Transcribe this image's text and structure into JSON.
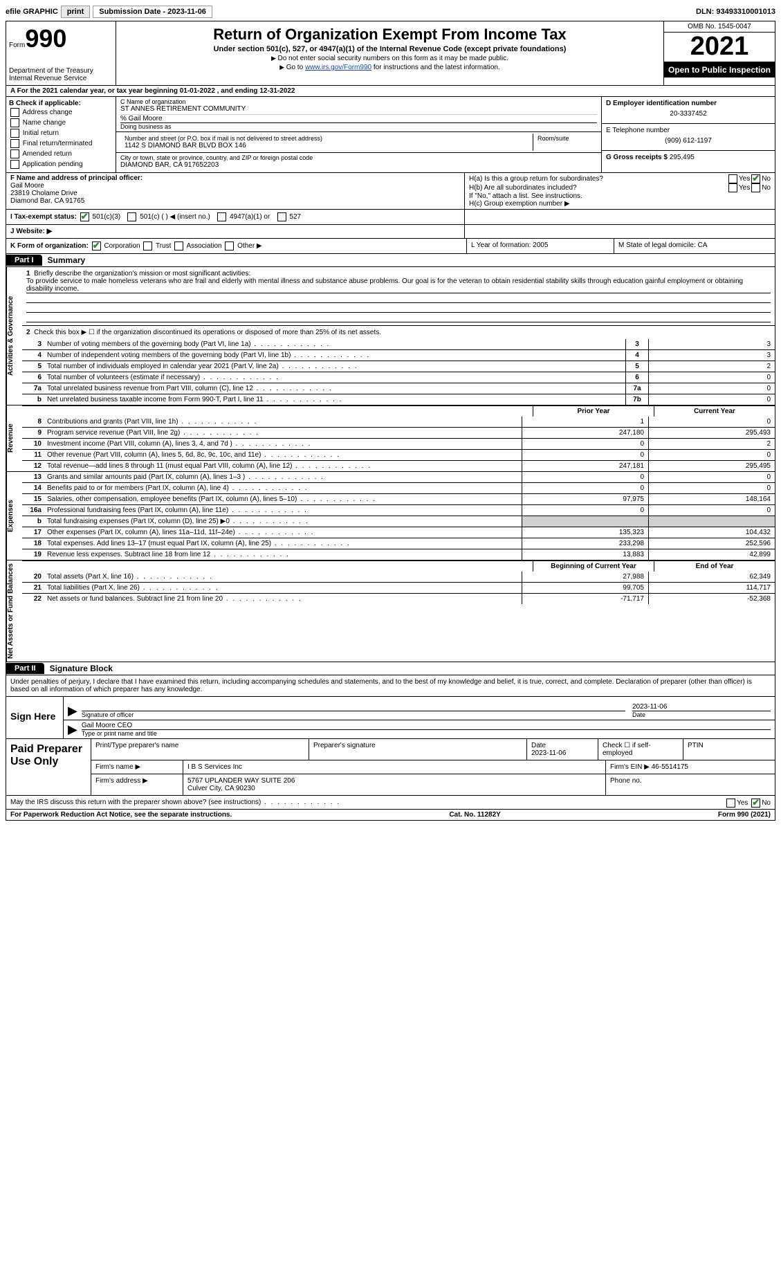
{
  "top": {
    "efile_label": "efile GRAPHIC",
    "print_btn": "print",
    "submission_label": "Submission Date - 2023-11-06",
    "dln_label": "DLN: 93493310001013"
  },
  "header": {
    "form_word": "Form",
    "form_num": "990",
    "dept": "Department of the Treasury Internal Revenue Service",
    "title": "Return of Organization Exempt From Income Tax",
    "sub": "Under section 501(c), 527, or 4947(a)(1) of the Internal Revenue Code (except private foundations)",
    "note1": "Do not enter social security numbers on this form as it may be made public.",
    "note2_pre": "Go to ",
    "note2_link": "www.irs.gov/Form990",
    "note2_post": " for instructions and the latest information.",
    "omb": "OMB No. 1545-0047",
    "year": "2021",
    "inspection": "Open to Public Inspection"
  },
  "row_a": "A For the 2021 calendar year, or tax year beginning 01-01-2022   , and ending 12-31-2022",
  "col_b": {
    "hdr": "B Check if applicable:",
    "items": [
      "Address change",
      "Name change",
      "Initial return",
      "Final return/terminated",
      "Amended return",
      "Application pending"
    ]
  },
  "col_c": {
    "name_label": "C Name of organization",
    "name": "ST ANNES RETIREMENT COMMUNITY",
    "care_of": "% Gail Moore",
    "dba_label": "Doing business as",
    "street_label": "Number and street (or P.O. box if mail is not delivered to street address)",
    "room_label": "Room/suite",
    "street": "1142 S DIAMOND BAR BLVD BOX 146",
    "city_label": "City or town, state or province, country, and ZIP or foreign postal code",
    "city": "DIAMOND BAR, CA  917652203"
  },
  "col_d": {
    "ein_label": "D Employer identification number",
    "ein": "20-3337452",
    "phone_label": "E Telephone number",
    "phone": "(909) 612-1197",
    "gross_label": "G Gross receipts $",
    "gross": "295,495"
  },
  "section_f": {
    "label": "F Name and address of principal officer:",
    "name": "Gail Moore",
    "addr1": "23819 Cholame Drive",
    "addr2": "Diamond Bar, CA  91765"
  },
  "section_h": {
    "ha": "H(a)  Is this a group return for subordinates?",
    "hb": "H(b)  Are all subordinates included?",
    "hb_note": "If \"No,\" attach a list. See instructions.",
    "hc": "H(c)  Group exemption number ▶",
    "yes": "Yes",
    "no": "No"
  },
  "row_i": {
    "label": "I  Tax-exempt status:",
    "o1": "501(c)(3)",
    "o2": "501(c) (  ) ◀ (insert no.)",
    "o3": "4947(a)(1) or",
    "o4": "527"
  },
  "row_j": {
    "label": "J  Website: ▶"
  },
  "row_k": {
    "label": "K Form of organization:",
    "corp": "Corporation",
    "trust": "Trust",
    "assoc": "Association",
    "other": "Other ▶",
    "l": "L Year of formation: 2005",
    "m": "M State of legal domicile: CA"
  },
  "part1": {
    "tab": "Part I",
    "title": "Summary"
  },
  "mission": {
    "label": "Briefly describe the organization's mission or most significant activities:",
    "text": "To provide service to male homeless veterans who are frail and elderly with mental illness and substance abuse problems. Our goal is for the veteran to obtain residential stability skills through education gainful employment or obtaining disability income."
  },
  "line2": "Check this box ▶ ☐ if the organization discontinued its operations or disposed of more than 25% of its net assets.",
  "vtabs": {
    "gov": "Activities & Governance",
    "rev": "Revenue",
    "exp": "Expenses",
    "net": "Net Assets or Fund Balances"
  },
  "lines_simple": [
    {
      "n": "3",
      "desc": "Number of voting members of the governing body (Part VI, line 1a)",
      "box": "3",
      "val": "3"
    },
    {
      "n": "4",
      "desc": "Number of independent voting members of the governing body (Part VI, line 1b)",
      "box": "4",
      "val": "3"
    },
    {
      "n": "5",
      "desc": "Total number of individuals employed in calendar year 2021 (Part V, line 2a)",
      "box": "5",
      "val": "2"
    },
    {
      "n": "6",
      "desc": "Total number of volunteers (estimate if necessary)",
      "box": "6",
      "val": "0"
    },
    {
      "n": "7a",
      "desc": "Total unrelated business revenue from Part VIII, column (C), line 12",
      "box": "7a",
      "val": "0"
    },
    {
      "n": "b",
      "desc": "Net unrelated business taxable income from Form 990-T, Part I, line 11",
      "box": "7b",
      "val": "0"
    }
  ],
  "col_hdr": {
    "prior": "Prior Year",
    "current": "Current Year",
    "boy": "Beginning of Current Year",
    "eoy": "End of Year"
  },
  "lines_rev": [
    {
      "n": "8",
      "desc": "Contributions and grants (Part VIII, line 1h)",
      "p": "1",
      "c": "0"
    },
    {
      "n": "9",
      "desc": "Program service revenue (Part VIII, line 2g)",
      "p": "247,180",
      "c": "295,493"
    },
    {
      "n": "10",
      "desc": "Investment income (Part VIII, column (A), lines 3, 4, and 7d )",
      "p": "0",
      "c": "2"
    },
    {
      "n": "11",
      "desc": "Other revenue (Part VIII, column (A), lines 5, 6d, 8c, 9c, 10c, and 11e)",
      "p": "0",
      "c": "0"
    },
    {
      "n": "12",
      "desc": "Total revenue—add lines 8 through 11 (must equal Part VIII, column (A), line 12)",
      "p": "247,181",
      "c": "295,495"
    }
  ],
  "lines_exp": [
    {
      "n": "13",
      "desc": "Grants and similar amounts paid (Part IX, column (A), lines 1–3 )",
      "p": "0",
      "c": "0"
    },
    {
      "n": "14",
      "desc": "Benefits paid to or for members (Part IX, column (A), line 4)",
      "p": "0",
      "c": "0"
    },
    {
      "n": "15",
      "desc": "Salaries, other compensation, employee benefits (Part IX, column (A), lines 5–10)",
      "p": "97,975",
      "c": "148,164"
    },
    {
      "n": "16a",
      "desc": "Professional fundraising fees (Part IX, column (A), line 11e)",
      "p": "0",
      "c": "0"
    },
    {
      "n": "b",
      "desc": "Total fundraising expenses (Part IX, column (D), line 25) ▶0",
      "p": "grey",
      "c": "grey"
    },
    {
      "n": "17",
      "desc": "Other expenses (Part IX, column (A), lines 11a–11d, 11f–24e)",
      "p": "135,323",
      "c": "104,432"
    },
    {
      "n": "18",
      "desc": "Total expenses. Add lines 13–17 (must equal Part IX, column (A), line 25)",
      "p": "233,298",
      "c": "252,596"
    },
    {
      "n": "19",
      "desc": "Revenue less expenses. Subtract line 18 from line 12",
      "p": "13,883",
      "c": "42,899"
    }
  ],
  "lines_net": [
    {
      "n": "20",
      "desc": "Total assets (Part X, line 16)",
      "p": "27,988",
      "c": "62,349"
    },
    {
      "n": "21",
      "desc": "Total liabilities (Part X, line 26)",
      "p": "99,705",
      "c": "114,717"
    },
    {
      "n": "22",
      "desc": "Net assets or fund balances. Subtract line 21 from line 20",
      "p": "-71,717",
      "c": "-52,368"
    }
  ],
  "part2": {
    "tab": "Part II",
    "title": "Signature Block"
  },
  "sig": {
    "decl": "Under penalties of perjury, I declare that I have examined this return, including accompanying schedules and statements, and to the best of my knowledge and belief, it is true, correct, and complete. Declaration of preparer (other than officer) is based on all information of which preparer has any knowledge.",
    "sign_here": "Sign Here",
    "sig_officer": "Signature of officer",
    "date": "Date",
    "date_val": "2023-11-06",
    "name_title": "Gail Moore CEO",
    "name_label": "Type or print name and title"
  },
  "preparer": {
    "label": "Paid Preparer Use Only",
    "print_name": "Print/Type preparer's name",
    "prep_sig": "Preparer's signature",
    "date_label": "Date",
    "date": "2023-11-06",
    "check_self": "Check ☐ if self-employed",
    "ptin": "PTIN",
    "firm_name_label": "Firm's name    ▶",
    "firm_name": "I B S Services Inc",
    "firm_ein_label": "Firm's EIN ▶",
    "firm_ein": "46-5514175",
    "firm_addr_label": "Firm's address ▶",
    "firm_addr": "5767 UPLANDER WAY SUITE 206",
    "firm_city": "Culver City, CA  90230",
    "phone_label": "Phone no."
  },
  "discuss": "May the IRS discuss this return with the preparer shown above? (see instructions)",
  "footer": {
    "left": "For Paperwork Reduction Act Notice, see the separate instructions.",
    "mid": "Cat. No. 11282Y",
    "right": "Form 990 (2021)"
  }
}
